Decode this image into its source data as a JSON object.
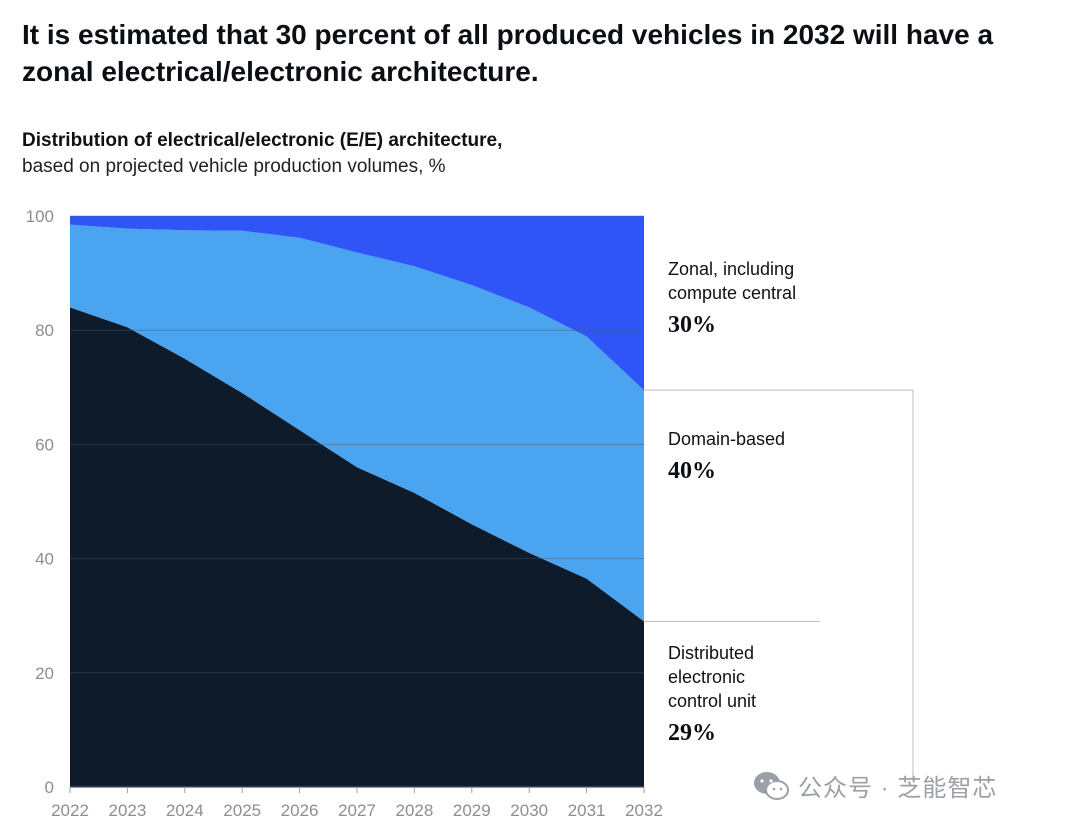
{
  "headline": "It is estimated that 30 percent of all produced vehicles in 2032 will have a zonal electrical/electronic architecture.",
  "subtitle": {
    "bold": "Distribution of electrical/electronic (E/E) architecture,",
    "normal": "based on projected vehicle production volumes, %"
  },
  "legend": {
    "zonal": {
      "label_line1": "Zonal, including",
      "label_line2": "compute central",
      "value": "30%"
    },
    "domain": {
      "label": "Domain-based",
      "value": "40%"
    },
    "distributed": {
      "label_line1": "Distributed",
      "label_line2": "electronic",
      "label_line3": "control unit",
      "value": "29%"
    }
  },
  "watermark": {
    "text": "公众号 · 芝能智芯"
  },
  "colors": {
    "distributed": "#0e1b2b",
    "domain": "#4aa4ef",
    "zonal": "#2f55f6",
    "grid": "#4a5868",
    "axis_text": "#8a8f96"
  },
  "chart_data": {
    "type": "area",
    "stacked": true,
    "title": "Distribution of electrical/electronic (E/E) architecture",
    "xlabel": "",
    "ylabel": "%",
    "ylim": [
      0,
      100
    ],
    "yticks": [
      0,
      20,
      40,
      60,
      80,
      100
    ],
    "categories": [
      "2022",
      "2023",
      "2024",
      "2025",
      "2026",
      "2027",
      "2028",
      "2029",
      "2030",
      "2031",
      "2032"
    ],
    "series": [
      {
        "name": "Distributed electronic control unit",
        "values": [
          84,
          80.5,
          75,
          69,
          62.5,
          56,
          51.5,
          46,
          41,
          36.5,
          29
        ]
      },
      {
        "name": "Domain-based",
        "values": [
          14.5,
          17.3,
          22.5,
          28.4,
          33.7,
          37.6,
          39.7,
          41.9,
          43,
          42.4,
          40.5
        ]
      },
      {
        "name": "Zonal, including compute central",
        "values": [
          1.5,
          2.2,
          2.5,
          2.6,
          3.8,
          6.4,
          8.8,
          12.1,
          16,
          21.1,
          30.5
        ]
      }
    ]
  }
}
